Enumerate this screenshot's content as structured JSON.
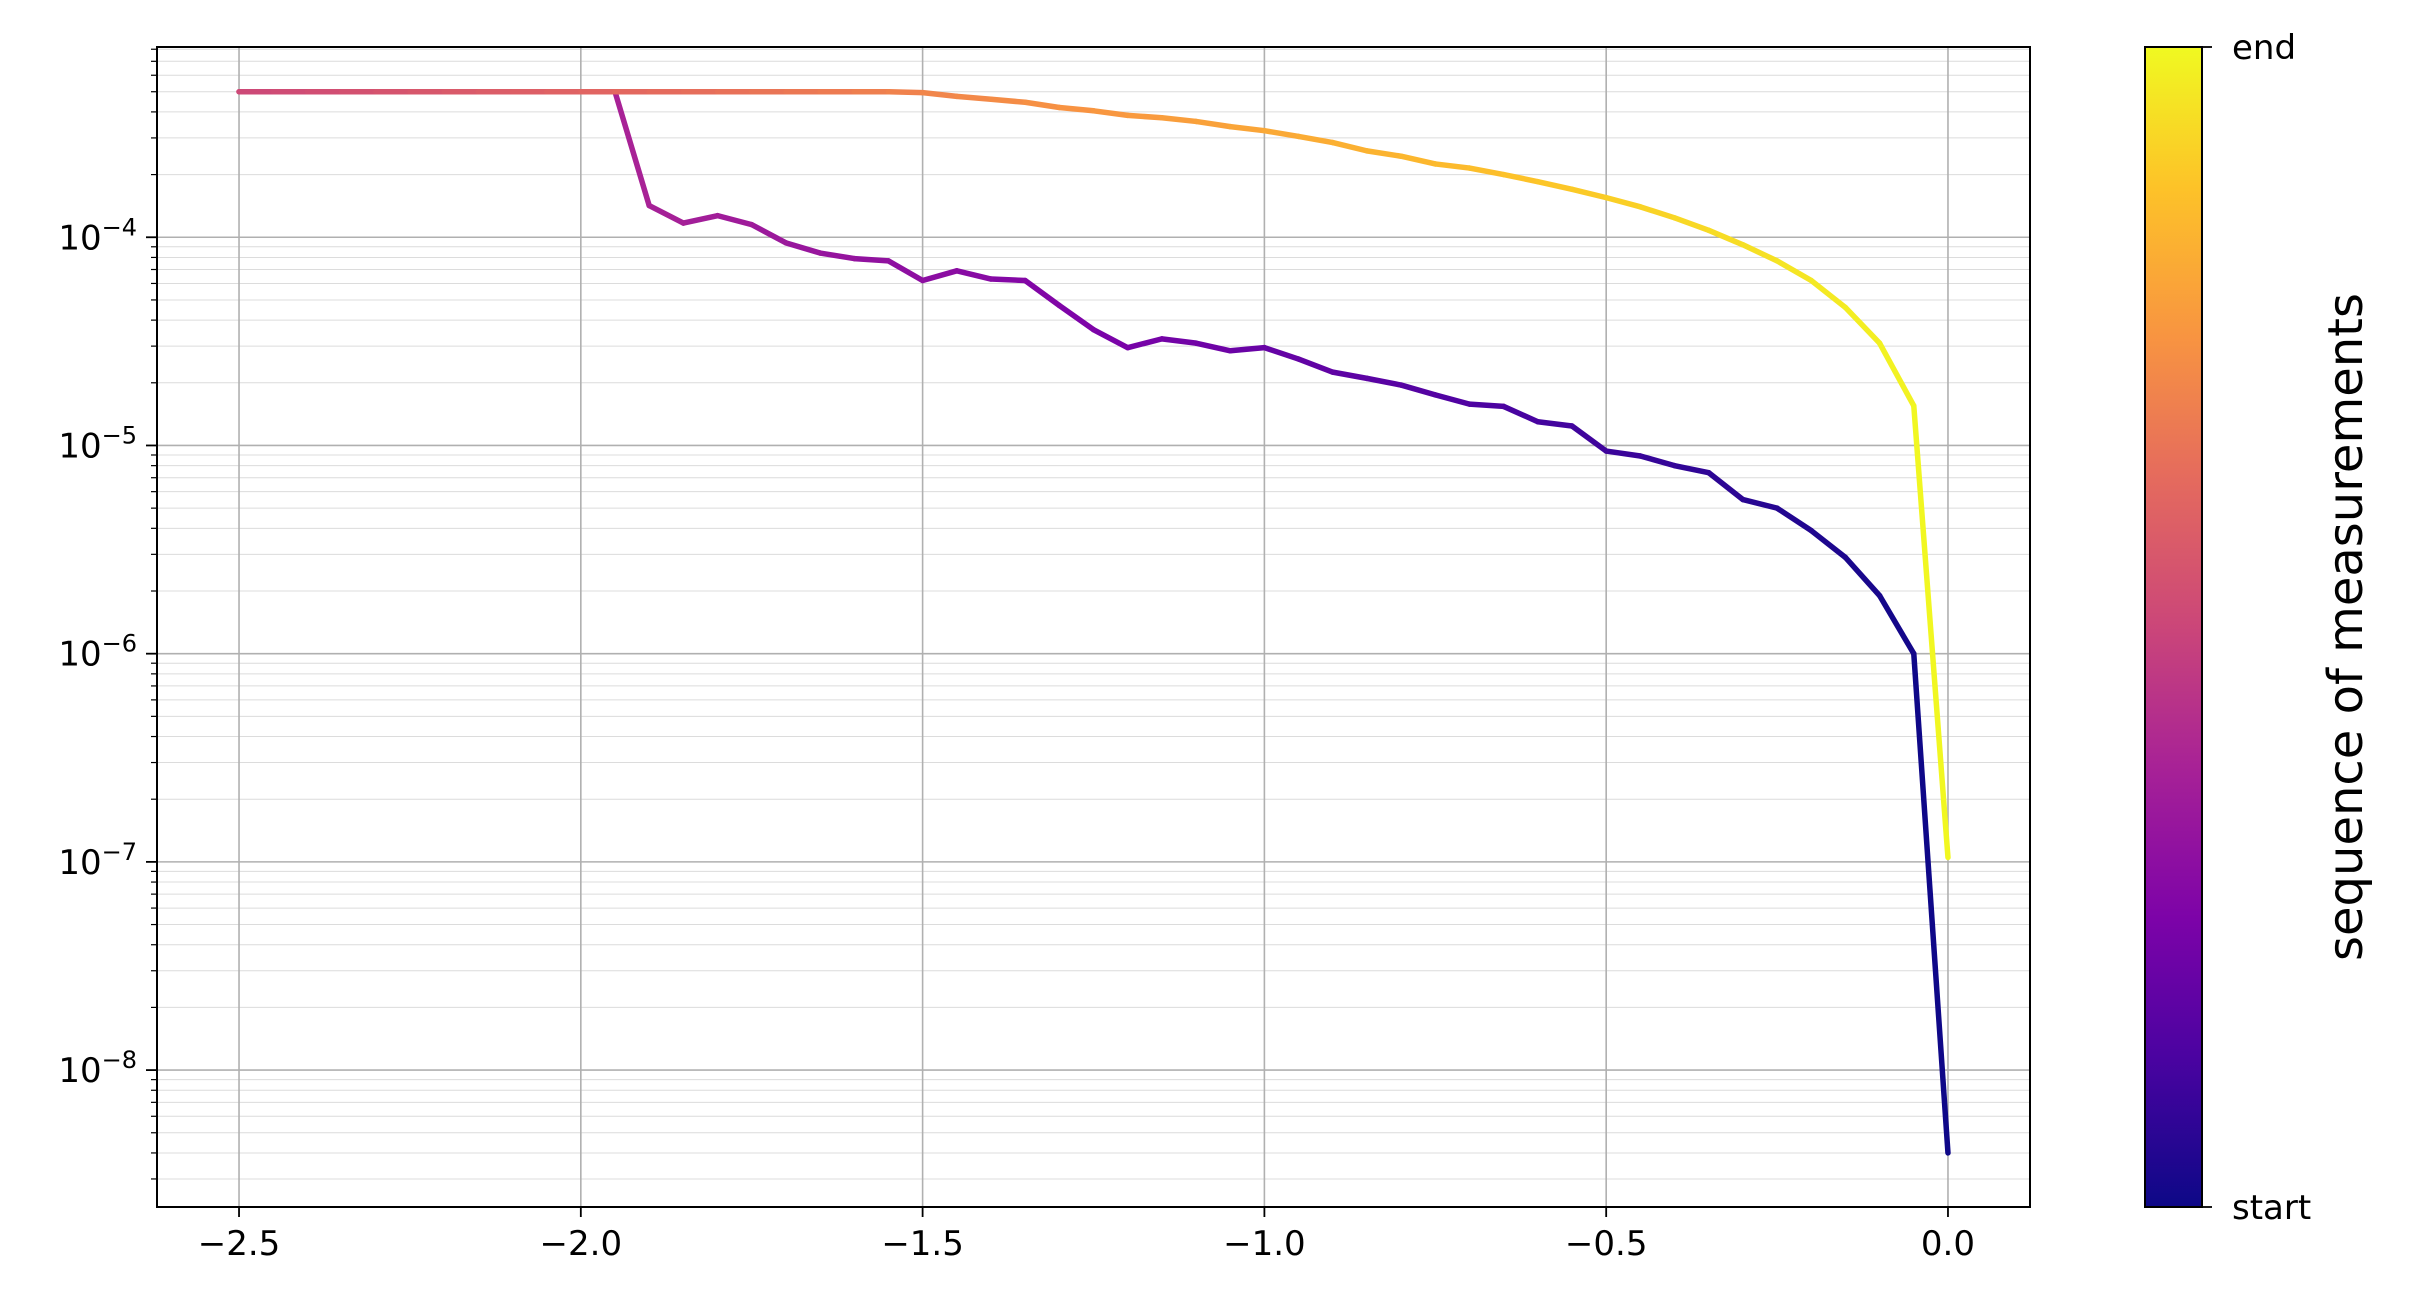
{
  "chart_data": {
    "type": "line",
    "title": "",
    "xlabel": "",
    "ylabel": "",
    "xlim": [
      -2.62,
      0.12
    ],
    "ylim": [
      2.2e-09,
      0.00082
    ],
    "yscale": "log",
    "grid": {
      "major": true,
      "minor_y": true
    },
    "x_ticks": [
      -2.5,
      -2.0,
      -1.5,
      -1.0,
      -0.5,
      0.0
    ],
    "x_tick_labels": [
      "−2.5",
      "−2.0",
      "−1.5",
      "−1.0",
      "−0.5",
      "0.0"
    ],
    "y_ticks": [
      1e-08,
      1e-07,
      1e-06,
      1e-05,
      0.0001
    ],
    "y_tick_labels": [
      {
        "base": "10",
        "exp": "−8"
      },
      {
        "base": "10",
        "exp": "−7"
      },
      {
        "base": "10",
        "exp": "−6"
      },
      {
        "base": "10",
        "exp": "−5"
      },
      {
        "base": "10",
        "exp": "−4"
      }
    ],
    "colormap": "plasma",
    "colorbar": {
      "label": "sequence of measurements",
      "tick_start": "start",
      "tick_end": "end",
      "position": "right"
    },
    "series": [
      {
        "values_note": "",
        "points": [
          [
            0.0,
            4e-09
          ],
          [
            -0.05,
            1e-06
          ],
          [
            -0.1,
            1.9e-06
          ],
          [
            -0.15,
            2.9e-06
          ],
          [
            -0.2,
            3.9e-06
          ],
          [
            -0.25,
            5e-06
          ],
          [
            -0.3,
            5.5e-06
          ],
          [
            -0.35,
            7.4e-06
          ],
          [
            -0.4,
            8e-06
          ],
          [
            -0.45,
            8.9e-06
          ],
          [
            -0.5,
            9.4e-06
          ],
          [
            -0.55,
            1.24e-05
          ],
          [
            -0.6,
            1.3e-05
          ],
          [
            -0.65,
            1.54e-05
          ],
          [
            -0.7,
            1.58e-05
          ],
          [
            -0.75,
            1.75e-05
          ],
          [
            -0.8,
            1.95e-05
          ],
          [
            -0.85,
            2.1e-05
          ],
          [
            -0.9,
            2.25e-05
          ],
          [
            -0.95,
            2.6e-05
          ],
          [
            -1.0,
            2.95e-05
          ],
          [
            -1.05,
            2.85e-05
          ],
          [
            -1.1,
            3.1e-05
          ],
          [
            -1.15,
            3.25e-05
          ],
          [
            -1.2,
            2.95e-05
          ],
          [
            -1.25,
            3.6e-05
          ],
          [
            -1.3,
            4.7e-05
          ],
          [
            -1.35,
            6.2e-05
          ],
          [
            -1.4,
            6.3e-05
          ],
          [
            -1.45,
            6.9e-05
          ],
          [
            -1.5,
            6.2e-05
          ],
          [
            -1.55,
            7.7e-05
          ],
          [
            -1.6,
            7.9e-05
          ],
          [
            -1.65,
            8.4e-05
          ],
          [
            -1.7,
            9.4e-05
          ],
          [
            -1.75,
            0.000115
          ],
          [
            -1.8,
            0.000127
          ],
          [
            -1.85,
            0.000117
          ],
          [
            -1.9,
            0.000142
          ],
          [
            -1.95,
            0.0005
          ],
          [
            -2.0,
            0.0005
          ],
          [
            -2.05,
            0.0005
          ],
          [
            -2.1,
            0.0005
          ],
          [
            -2.15,
            0.0005
          ],
          [
            -2.2,
            0.0005
          ],
          [
            -2.25,
            0.0005
          ],
          [
            -2.3,
            0.0005
          ],
          [
            -2.35,
            0.0005
          ],
          [
            -2.4,
            0.0005
          ],
          [
            -2.45,
            0.0005
          ],
          [
            -2.5,
            0.0005
          ]
        ]
      },
      {
        "points": [
          [
            -2.5,
            0.0005
          ],
          [
            -2.45,
            0.0005
          ],
          [
            -2.4,
            0.0005
          ],
          [
            -2.35,
            0.0005
          ],
          [
            -2.3,
            0.0005
          ],
          [
            -2.25,
            0.0005
          ],
          [
            -2.2,
            0.0005
          ],
          [
            -2.15,
            0.0005
          ],
          [
            -2.1,
            0.0005
          ],
          [
            -2.05,
            0.0005
          ],
          [
            -2.0,
            0.0005
          ],
          [
            -1.95,
            0.0005
          ],
          [
            -1.9,
            0.0005
          ],
          [
            -1.85,
            0.0005
          ],
          [
            -1.8,
            0.0005
          ],
          [
            -1.75,
            0.0005
          ],
          [
            -1.7,
            0.0005
          ],
          [
            -1.65,
            0.0005
          ],
          [
            -1.6,
            0.0005
          ],
          [
            -1.55,
            0.0005
          ],
          [
            -1.5,
            0.000495
          ],
          [
            -1.45,
            0.000475
          ],
          [
            -1.4,
            0.00046
          ],
          [
            -1.35,
            0.000445
          ],
          [
            -1.3,
            0.00042
          ],
          [
            -1.25,
            0.000405
          ],
          [
            -1.2,
            0.000385
          ],
          [
            -1.15,
            0.000375
          ],
          [
            -1.1,
            0.00036
          ],
          [
            -1.05,
            0.00034
          ],
          [
            -1.0,
            0.000325
          ],
          [
            -0.95,
            0.000305
          ],
          [
            -0.9,
            0.000285
          ],
          [
            -0.85,
            0.00026
          ],
          [
            -0.8,
            0.000245
          ],
          [
            -0.75,
            0.000225
          ],
          [
            -0.7,
            0.000215
          ],
          [
            -0.65,
            0.0002
          ],
          [
            -0.6,
            0.000185
          ],
          [
            -0.55,
            0.00017
          ],
          [
            -0.5,
            0.000155
          ],
          [
            -0.45,
            0.00014
          ],
          [
            -0.4,
            0.000124
          ],
          [
            -0.35,
            0.000108
          ],
          [
            -0.3,
            9.2e-05
          ],
          [
            -0.25,
            7.7e-05
          ],
          [
            -0.2,
            6.2e-05
          ],
          [
            -0.15,
            4.6e-05
          ],
          [
            -0.1,
            3.1e-05
          ],
          [
            -0.05,
            1.55e-05
          ],
          [
            0.0,
            1.05e-07
          ]
        ]
      }
    ]
  }
}
